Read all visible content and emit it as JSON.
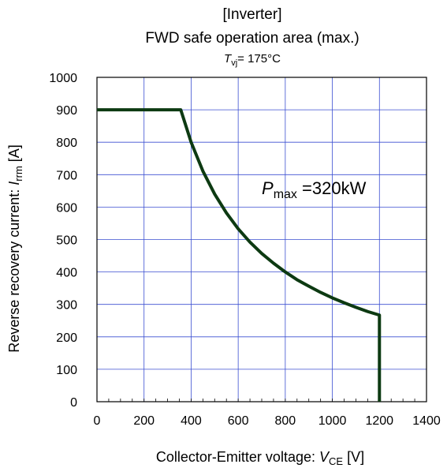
{
  "chart_data": {
    "type": "line",
    "title_lines": [
      "[Inverter]",
      "FWD safe operation area (max.)"
    ],
    "condition": {
      "symbol": "T",
      "sub": "vj",
      "text": "= 175°C"
    },
    "xlabel": {
      "text": "Collector-Emitter voltage: ",
      "symbol": "V",
      "sub": "CE",
      "unit": " [V]"
    },
    "ylabel": {
      "text": "Reverse recovery current: ",
      "symbol": "I",
      "sub": "rrm",
      "unit": "  [A]"
    },
    "xlim": [
      0,
      1400
    ],
    "ylim": [
      0,
      1000
    ],
    "xticks": [
      0,
      200,
      400,
      600,
      800,
      1000,
      1200,
      1400
    ],
    "yticks": [
      0,
      100,
      200,
      300,
      400,
      500,
      600,
      700,
      800,
      900,
      1000
    ],
    "grid": true,
    "annotation": {
      "symbol": "P",
      "sub": "max",
      "text": " =320kW",
      "x": 700,
      "y": 640
    },
    "series": [
      {
        "color": "#0d3a12",
        "x": [
          0,
          356,
          400,
          450,
          500,
          550,
          600,
          650,
          700,
          750,
          800,
          850,
          900,
          950,
          1000,
          1050,
          1100,
          1150,
          1200,
          1200
        ],
        "y": [
          900,
          900,
          800,
          711,
          640,
          582,
          533,
          492,
          457,
          427,
          400,
          376,
          356,
          337,
          320,
          305,
          291,
          278,
          267,
          0
        ]
      }
    ]
  }
}
